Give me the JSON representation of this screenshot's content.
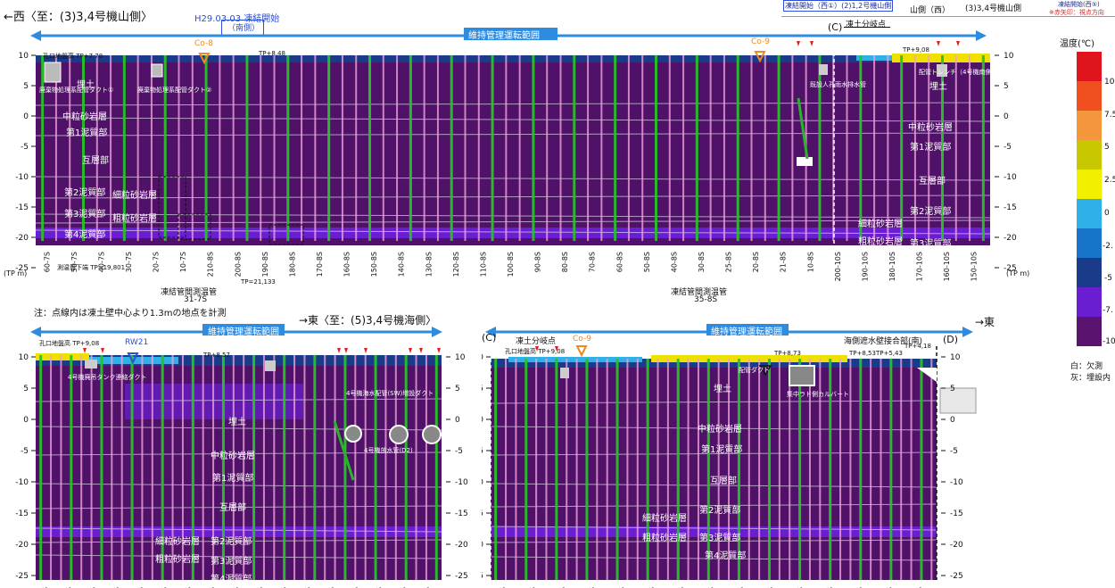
{
  "header": {
    "west_title": "←西〈至：(3)3,4号機山側〉",
    "start_date": "H29.03.03 凍結開始",
    "start_side": "（南側）",
    "legend_top_1": "凍結開始（西①）(2)1,2号機山側",
    "legend_top_2": "山側（西）",
    "legend_top_3": "(3)3,4号機山側",
    "legend_top_4": "凍結開始(西⑤)",
    "legend_top_5": "※赤矢印：視点方向"
  },
  "legend": {
    "title": "温度(℃)",
    "ticks": [
      "10",
      "7.5",
      "5",
      "2.5",
      "0",
      "-2.",
      "-5",
      "-7.",
      "-10"
    ],
    "colors": [
      "#e0141c",
      "#f05020",
      "#f4963c",
      "#c8c800",
      "#f0f000",
      "#30b0e8",
      "#1874c8",
      "#1a3a8a",
      "#6a1ed2",
      "#5a1470"
    ],
    "note_white": "白：欠測",
    "note_gray": "灰：埋設内"
  },
  "top_panel": {
    "range_label": "維持管理運転範囲",
    "point_c": "(C)",
    "branch": "凍土分岐点",
    "tp_left": "孔口地盤高 TP+7,78",
    "tp_mid": "TP+8,48",
    "tp_right": "TP+9,08",
    "tp_bottom": "測温管下端 TP=19,801",
    "tp_bottom2": "TP=21,133",
    "co8": "Co-8",
    "co9": "Co-9",
    "layers": [
      "埋土",
      "中粒砂岩層",
      "第1泥質部",
      "互層部",
      "第2泥質部",
      "細粒砂岩層",
      "第3泥質部",
      "粗粒砂岩層",
      "第4泥質部"
    ],
    "layers_right": [
      "埋土",
      "中粒砂岩層",
      "第1泥質部",
      "互層部",
      "第2泥質部",
      "細粒砂岩層",
      "粗粒砂岩層",
      "第3泥質部"
    ],
    "duct1": "廃棄物処理系配管ダクト①",
    "duct2": "廃棄物処理系配管ダクト②",
    "drain": "既設人孔雨水排水管",
    "duct_right": "配管トレンチ（4号機南側）",
    "yaxis": [
      "10",
      "5",
      "0",
      "-5",
      "-10",
      "-15",
      "-20",
      "-25"
    ],
    "yunit": "(TP m)",
    "xticks": [
      "60-7S",
      "50-7S",
      "40-7S",
      "30-7S",
      "20-7S",
      "10-7S",
      "210-8S",
      "200-8S",
      "190-8S",
      "180-8S",
      "170-8S",
      "160-8S",
      "150-8S",
      "140-8S",
      "130-8S",
      "120-8S",
      "110-8S",
      "100-8S",
      "90-8S",
      "80-8S",
      "70-8S",
      "60-8S",
      "50-8S",
      "40-8S",
      "30-8S",
      "25-8S",
      "20-8S",
      "21-8S",
      "10-8S",
      "200-10S",
      "190-10S",
      "180-10S",
      "170-10S",
      "160-10S",
      "150-10S"
    ],
    "pipe1": "凍結管間測温管",
    "pipe1b": "31-7S",
    "pipe2": "凍結管間測温管",
    "pipe2b": "35-8S"
  },
  "note": "注：点線内は凍土壁中心より1.3mの地点を計測",
  "mid_caption": "→東〈至：(5)3,4号機海側〉",
  "east_label": "→東",
  "bottom_left": {
    "range_label": "維持管理運転範囲",
    "rw": "RW21",
    "tp_left": "孔口地盤高 TP+9,08",
    "tp_mid": "TP+8,57",
    "tank": "4号機廃吊タンク連絡ダクト",
    "duct": "4号機海水配管(SW)増設ダクト",
    "pipe": "4号機放水管(D2)",
    "layers": [
      "埋土",
      "中粒砂岩層",
      "第1泥質部",
      "互層部",
      "細粒砂岩層",
      "第2泥質部",
      "粗粒砂岩層",
      "第3泥質部",
      "第4泥質部"
    ],
    "yaxis": [
      "10",
      "5",
      "0",
      "-5",
      "-10",
      "-15",
      "-20",
      "-25"
    ],
    "xticks": [
      "150-10S",
      "40-10S",
      "30-10S",
      "20-10S",
      "10-10S",
      "100-10S",
      "90-10S",
      "80-10S",
      "70-10S",
      "60-10S",
      "50-10S",
      "40-10S",
      "30-10S",
      "20-10S",
      "15-10S",
      "10-10S",
      "5-10S"
    ]
  },
  "bottom_right": {
    "range_label": "維持管理運転範囲",
    "point_c": "(C)",
    "point_d": "(D)",
    "branch": "凍土分岐点",
    "co9": "Co-9",
    "tp_left": "孔口地盤高 TP+9,08",
    "tp_mid": "TP+8,73",
    "tp_a": "TP+8,53",
    "tp_b": "TP+5,43",
    "tp_c": "TP+4,18",
    "seaside": "海側遮水壁接合部(南)",
    "culvert": "集中ラド側カルバート",
    "pdt": "配管ダクト",
    "layers": [
      "埋土",
      "中粒砂岩層",
      "第1泥質部",
      "互層部",
      "細粒砂岩層",
      "第2泥質部",
      "粗粒砂岩層",
      "第3泥質部",
      "第4泥質部"
    ],
    "yaxis": [
      "10",
      "5",
      "0",
      "-5",
      "-10",
      "-15",
      "-20",
      "-25"
    ],
    "xticks": [
      "0-9S",
      "5-9S",
      "20-9S",
      "40-9S",
      "50-9S",
      "60-9S",
      "70-9S",
      "80-9S",
      "90-9S",
      "100-9S",
      "110-9S",
      "120-9S",
      "130-9S",
      "140-9S",
      "150-9S"
    ]
  }
}
